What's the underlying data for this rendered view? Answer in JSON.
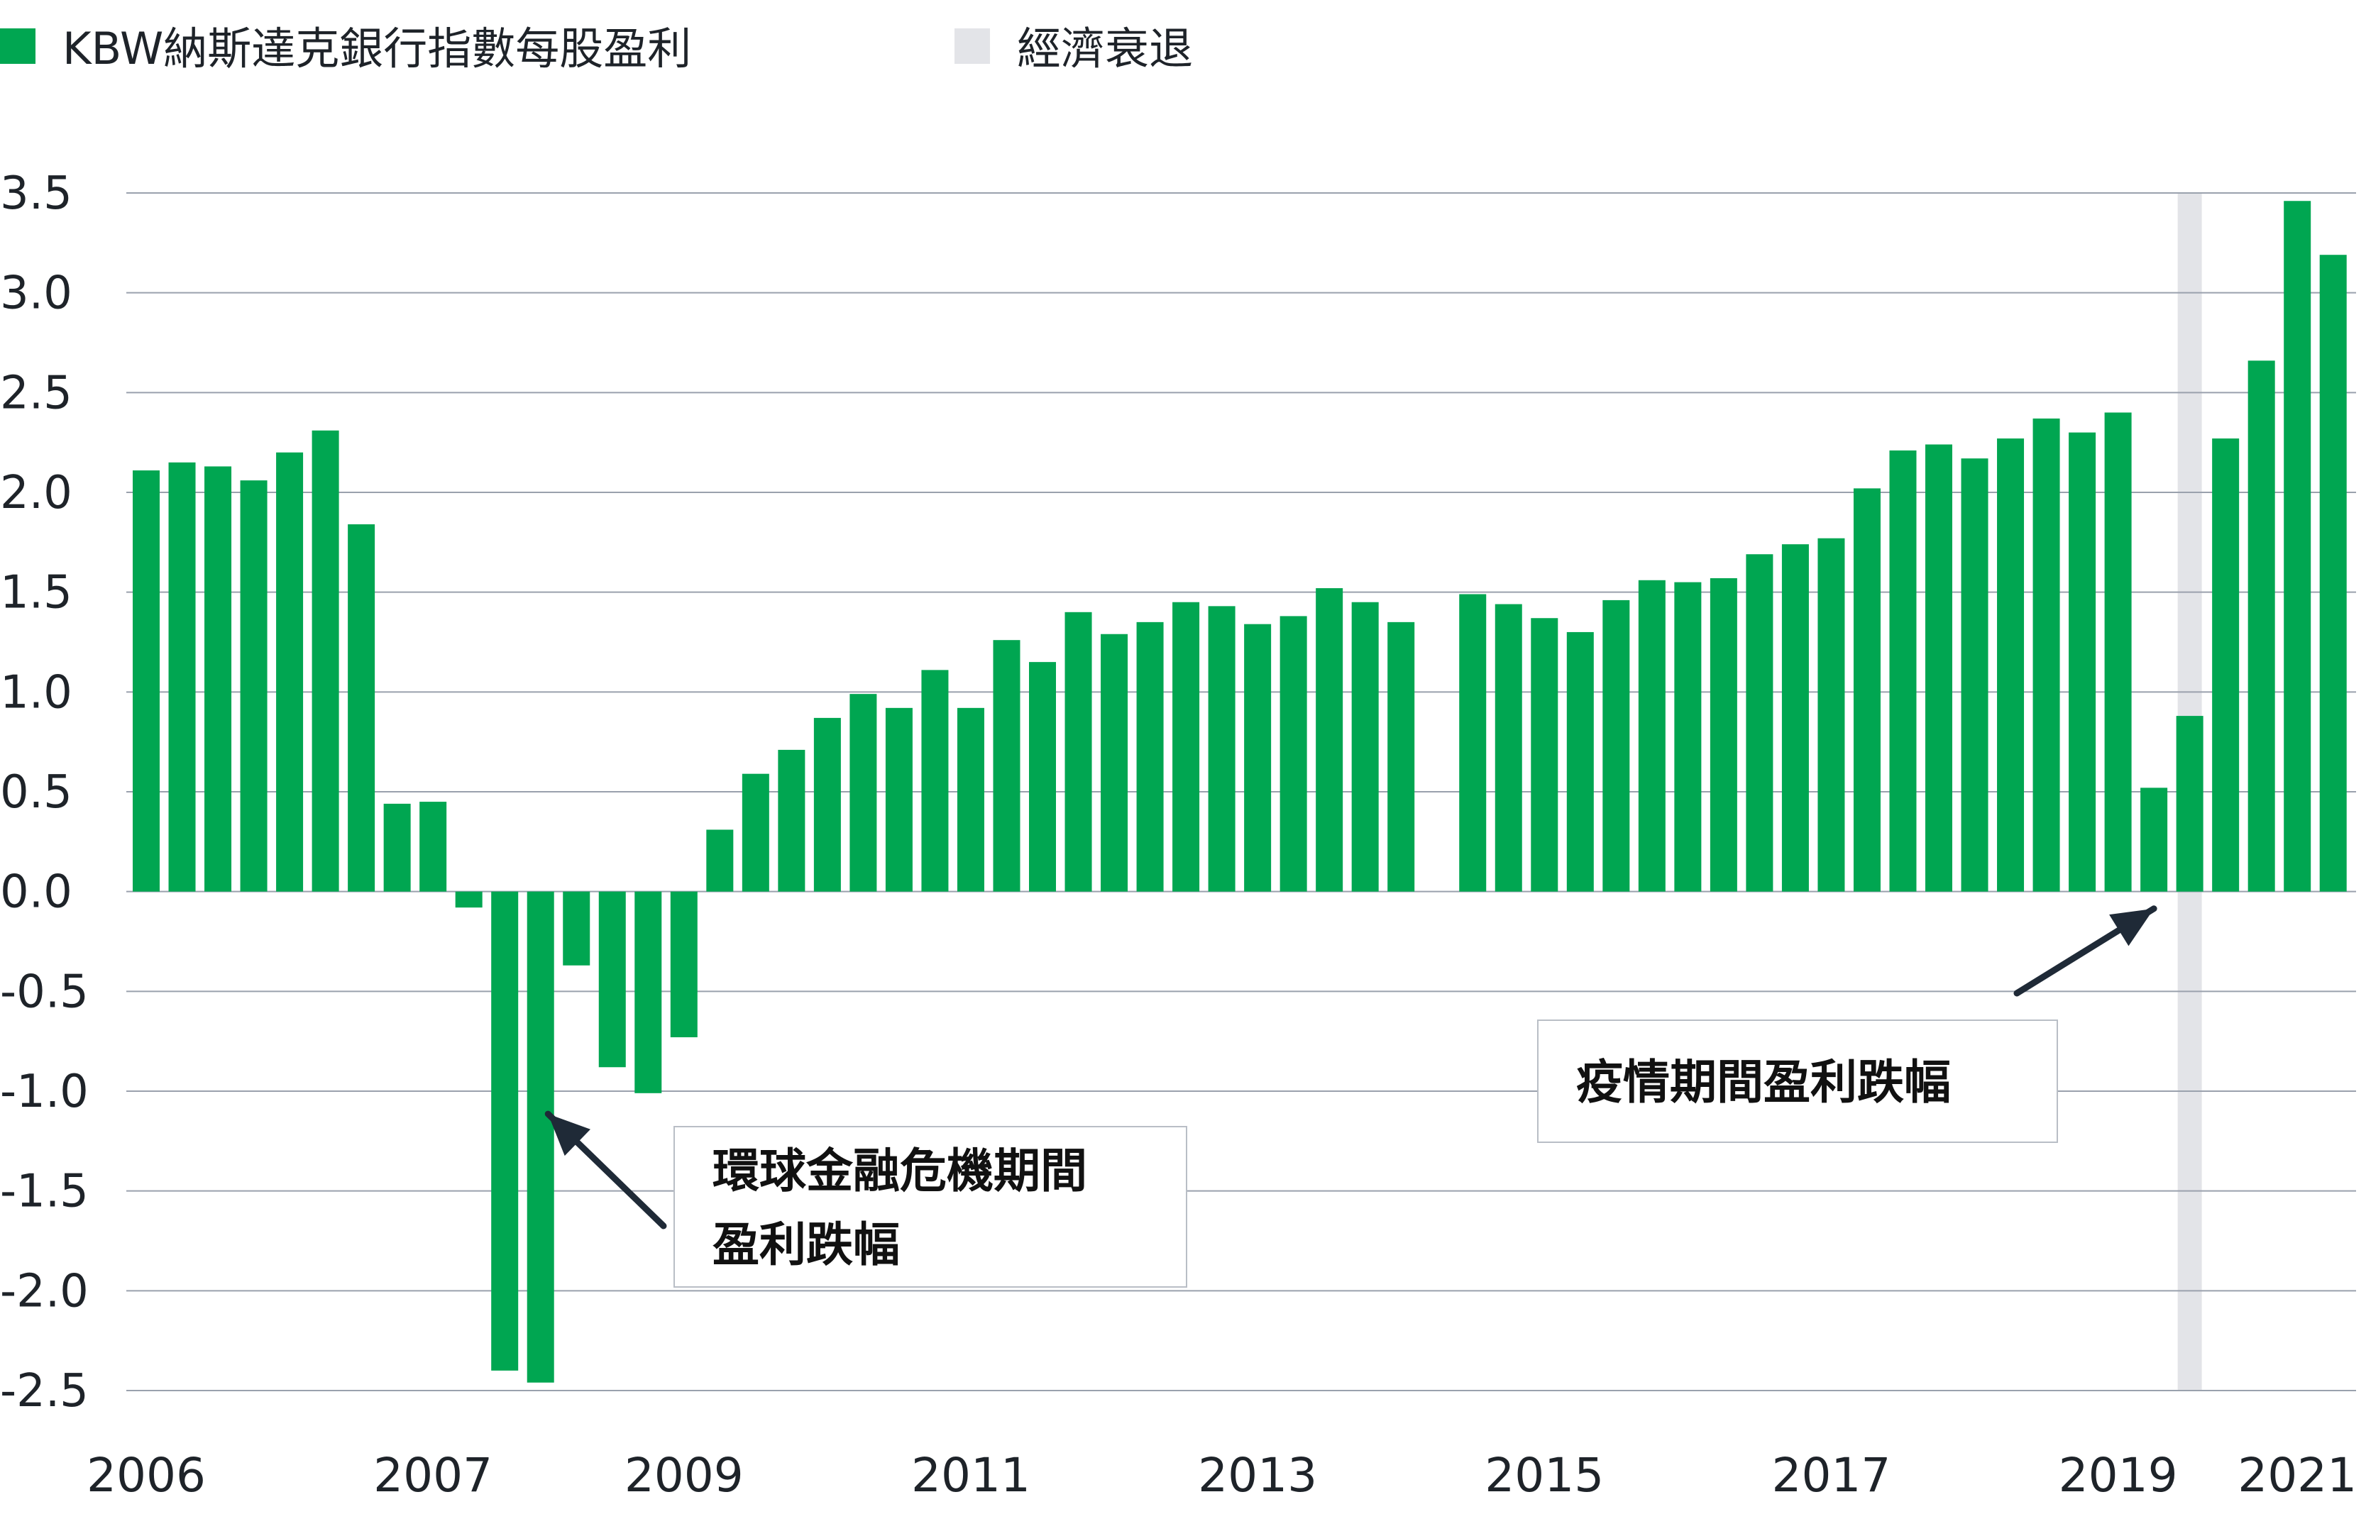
{
  "legend": {
    "eps_label": "KBW納斯達克銀行指數每股盈利",
    "recession_label": "經濟衰退"
  },
  "colors": {
    "bar": "#00a651",
    "recession": "#e3e4e8",
    "grid": "#9aa1ad",
    "axis_text": "#1e2329",
    "arrow": "#1f2a37"
  },
  "chart_data": {
    "type": "bar",
    "ylim": [
      -2.5,
      3.5
    ],
    "yticks": [
      "3.5",
      "3.0",
      "2.5",
      "2.0",
      "1.5",
      "1.0",
      "0.5",
      "0.0",
      "-0.5",
      "-1.0",
      "-1.5",
      "-2.0",
      "-2.5"
    ],
    "xtick_labels": [
      {
        "label": "2006",
        "index": 0
      },
      {
        "label": "2007",
        "index": 8
      },
      {
        "label": "2009",
        "index": 15
      },
      {
        "label": "2011",
        "index": 23
      },
      {
        "label": "2013",
        "index": 31
      },
      {
        "label": "2015",
        "index": 39
      },
      {
        "label": "2017",
        "index": 47
      },
      {
        "label": "2019",
        "index": 55
      },
      {
        "label": "2021",
        "index": 60
      }
    ],
    "grid": true,
    "legend_position": "top-left",
    "recession_band": {
      "index": 57
    },
    "series": [
      {
        "name": "KBW納斯達克銀行指數每股盈利",
        "values": [
          2.11,
          2.15,
          2.13,
          2.06,
          2.2,
          2.31,
          1.84,
          0.44,
          0.45,
          -0.08,
          -2.4,
          -2.46,
          -0.37,
          -0.88,
          -1.01,
          -0.73,
          0.31,
          0.59,
          0.71,
          0.87,
          0.99,
          0.92,
          1.11,
          0.92,
          1.26,
          1.15,
          1.4,
          1.29,
          1.35,
          1.45,
          1.43,
          1.34,
          1.38,
          1.52,
          1.45,
          1.35,
          null,
          1.49,
          1.44,
          1.37,
          1.3,
          1.46,
          1.56,
          1.55,
          1.57,
          1.69,
          1.74,
          1.77,
          2.02,
          2.21,
          2.24,
          2.17,
          2.27,
          2.37,
          2.3,
          2.4,
          0.52,
          0.88,
          2.27,
          2.66,
          3.46,
          3.19
        ]
      }
    ],
    "annotations": [
      {
        "lines": [
          "環球金融危機期間",
          "盈利跌幅"
        ],
        "target_index": 12,
        "target_value": -1.05
      },
      {
        "lines": [
          "疫情期間盈利跌幅"
        ],
        "target_index": 56,
        "target_value": -0.05
      }
    ]
  }
}
